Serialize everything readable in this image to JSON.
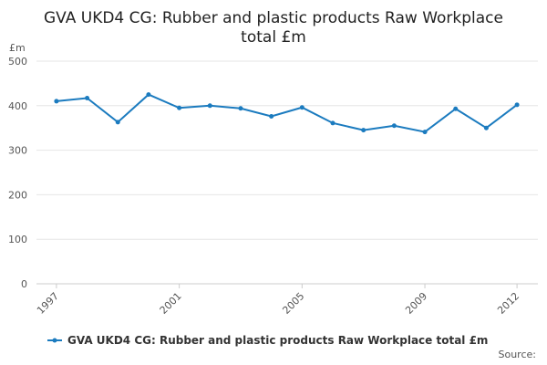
{
  "chart_data": {
    "type": "line",
    "title": "GVA UKD4 CG: Rubber and plastic products Raw Workplace total £m",
    "y_unit": "£m",
    "source": "Source:",
    "x": [
      1997,
      1998,
      1999,
      2000,
      2001,
      2002,
      2003,
      2004,
      2005,
      2006,
      2007,
      2008,
      2009,
      2010,
      2011,
      2012
    ],
    "series": [
      {
        "name": "GVA UKD4 CG: Rubber and plastic products Raw Workplace total £m",
        "color": "#1b7bbf",
        "values": [
          410,
          417,
          363,
          425,
          395,
          400,
          394,
          376,
          396,
          361,
          345,
          355,
          341,
          393,
          350,
          402
        ]
      }
    ],
    "xlim": [
      1996.35,
      2012.68
    ],
    "xticks": [
      1997,
      2001,
      2005,
      2009,
      2012
    ],
    "ylim": [
      0,
      500
    ],
    "yticks": [
      0,
      100,
      200,
      300,
      400,
      500
    ],
    "grid": true
  }
}
